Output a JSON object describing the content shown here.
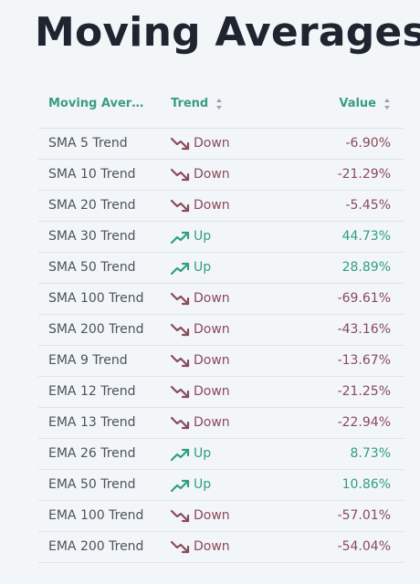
{
  "page": {
    "title": "Moving Averages"
  },
  "table": {
    "headers": {
      "name": "Moving Averages",
      "trend": "Trend",
      "value": "Value"
    },
    "rows": [
      {
        "name": "SMA 5 Trend",
        "trend": "Down",
        "direction": "down",
        "value": "-6.90%"
      },
      {
        "name": "SMA 10 Trend",
        "trend": "Down",
        "direction": "down",
        "value": "-21.29%"
      },
      {
        "name": "SMA 20 Trend",
        "trend": "Down",
        "direction": "down",
        "value": "-5.45%"
      },
      {
        "name": "SMA 30 Trend",
        "trend": "Up",
        "direction": "up",
        "value": "44.73%"
      },
      {
        "name": "SMA 50 Trend",
        "trend": "Up",
        "direction": "up",
        "value": "28.89%"
      },
      {
        "name": "SMA 100 Trend",
        "trend": "Down",
        "direction": "down",
        "value": "-69.61%"
      },
      {
        "name": "SMA 200 Trend",
        "trend": "Down",
        "direction": "down",
        "value": "-43.16%"
      },
      {
        "name": "EMA 9 Trend",
        "trend": "Down",
        "direction": "down",
        "value": "-13.67%"
      },
      {
        "name": "EMA 12 Trend",
        "trend": "Down",
        "direction": "down",
        "value": "-21.25%"
      },
      {
        "name": "EMA 13 Trend",
        "trend": "Down",
        "direction": "down",
        "value": "-22.94%"
      },
      {
        "name": "EMA 26 Trend",
        "trend": "Up",
        "direction": "up",
        "value": "8.73%"
      },
      {
        "name": "EMA 50 Trend",
        "trend": "Up",
        "direction": "up",
        "value": "10.86%"
      },
      {
        "name": "EMA 100 Trend",
        "trend": "Down",
        "direction": "down",
        "value": "-57.01%"
      },
      {
        "name": "EMA 200 Trend",
        "trend": "Down",
        "direction": "down",
        "value": "-54.04%"
      }
    ]
  },
  "colors": {
    "header_accent": "#3c9b87",
    "up": "#2f9e83",
    "down": "#8a4a5a",
    "title": "#1f2530",
    "background": "#f3f6f8"
  },
  "icons": {
    "up": "trending-up-icon",
    "down": "trending-down-icon",
    "sort": "sort-icon"
  }
}
